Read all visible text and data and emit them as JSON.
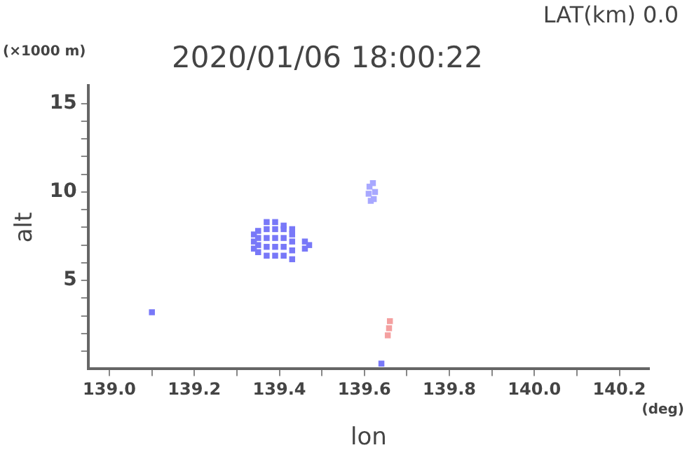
{
  "chart_data": {
    "type": "scatter",
    "title": "2020/01/06 18:00:22",
    "xlabel": "lon",
    "ylabel": "alt",
    "annotations": [
      "LAT(km) 0.0",
      "(×1000 m)",
      "(deg)"
    ],
    "marker": "square",
    "xlim": [
      138.95,
      140.27
    ],
    "ylim": [
      0,
      16
    ],
    "xticks": [
      {
        "value": 139,
        "label": "139.0"
      },
      {
        "value": 139.1,
        "label": null
      },
      139.2,
      {
        "value": 139.3,
        "label": null
      },
      139.4,
      {
        "value": 139.5,
        "label": null
      },
      139.6,
      {
        "value": 139.7,
        "label": null
      },
      139.8,
      {
        "value": 139.9,
        "label": null
      },
      {
        "value": 140,
        "label": "140.0"
      },
      {
        "value": 140.1,
        "label": null
      },
      140.2
    ],
    "yticks": [
      {
        "value": 1,
        "label": null
      },
      {
        "value": 2,
        "label": null
      },
      {
        "value": 3,
        "label": null
      },
      {
        "value": 4,
        "label": null
      },
      5,
      {
        "value": 6,
        "label": null
      },
      {
        "value": 7,
        "label": null
      },
      {
        "value": 8,
        "label": null
      },
      {
        "value": 9,
        "label": null
      },
      10,
      {
        "value": 11,
        "label": null
      },
      {
        "value": 12,
        "label": null
      },
      {
        "value": 13,
        "label": null
      },
      {
        "value": 14,
        "label": null
      },
      15
    ],
    "series": [
      {
        "color": "#7878f8",
        "x": [
          139.34,
          139.34,
          139.34,
          139.35,
          139.35,
          139.35,
          139.35,
          139.37,
          139.37,
          139.37,
          139.37,
          139.37,
          139.39,
          139.39,
          139.39,
          139.39,
          139.39,
          139.41,
          139.41,
          139.41,
          139.41,
          139.41,
          139.43,
          139.43,
          139.43,
          139.43,
          139.43,
          139.46,
          139.46,
          139.47,
          139.1,
          139.64
        ],
        "values": [
          6.8,
          7.2,
          7.6,
          6.6,
          7.0,
          7.4,
          7.8,
          6.4,
          6.9,
          7.4,
          7.9,
          8.3,
          6.4,
          6.9,
          7.4,
          7.9,
          8.3,
          6.4,
          6.9,
          7.4,
          7.9,
          8.1,
          6.2,
          6.7,
          7.2,
          7.6,
          7.9,
          6.8,
          7.2,
          7.0,
          3.2,
          0.3
        ]
      },
      {
        "color": "#a8a8ff",
        "x": [
          139.615,
          139.61,
          139.612,
          139.62,
          139.625,
          139.622
        ],
        "values": [
          9.5,
          9.9,
          10.3,
          10.5,
          10.0,
          9.6
        ]
      },
      {
        "color": "#f4a0a0",
        "x": [
          139.655,
          139.658,
          139.66
        ],
        "values": [
          1.9,
          2.3,
          2.7
        ]
      }
    ]
  }
}
